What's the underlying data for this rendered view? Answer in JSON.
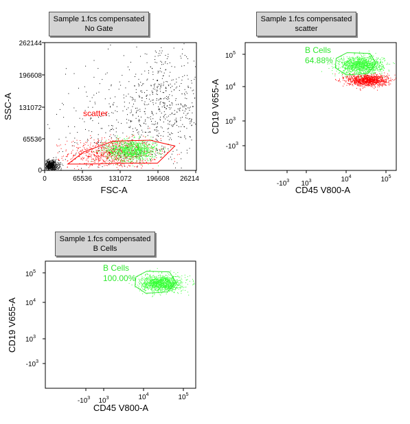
{
  "plots": [
    {
      "id": "p1",
      "header": {
        "line1": "Sample 1.fcs compensated",
        "line2": "No Gate"
      },
      "xlabel": "FSC-A",
      "ylabel": "SSC-A",
      "xticks": [
        "0",
        "65536",
        "131072",
        "196608",
        "26214"
      ],
      "yticks": [
        "262144",
        "196608",
        "131072",
        "65536",
        "0"
      ],
      "gate": {
        "name": "scatter",
        "pct": "",
        "color": "#ff0000"
      }
    },
    {
      "id": "p2",
      "header": {
        "line1": "Sample 1.fcs compensated",
        "line2": "scatter"
      },
      "xlabel": "CD45 V800-A",
      "ylabel": "CD19 V655-A",
      "xticks": [
        "-10",
        "10",
        "10",
        "10"
      ],
      "xtick_exps": [
        "3",
        "3",
        "4",
        "5"
      ],
      "yticks": [
        "10",
        "10",
        "10",
        "-10"
      ],
      "ytick_exps": [
        "5",
        "4",
        "3",
        "3"
      ],
      "gate": {
        "name": "B Cells",
        "pct": "64.88%",
        "color": "#2ee82e"
      }
    },
    {
      "id": "p3",
      "header": {
        "line1": "Sample 1.fcs compensated",
        "line2": "B Cells"
      },
      "xlabel": "CD45 V800-A",
      "ylabel": "CD19 V655-A",
      "xticks": [
        "-10",
        "10",
        "10",
        "10"
      ],
      "xtick_exps": [
        "3",
        "3",
        "4",
        "5"
      ],
      "yticks": [
        "10",
        "10",
        "10",
        "-10"
      ],
      "ytick_exps": [
        "5",
        "4",
        "3",
        "3"
      ],
      "gate": {
        "name": "B Cells",
        "pct": "100.00%",
        "color": "#2ee82e"
      }
    }
  ],
  "chart_data": [
    {
      "type": "scatter",
      "title": "Sample 1.fcs compensated / No Gate",
      "xlabel": "FSC-A",
      "ylabel": "SSC-A",
      "xlim": [
        0,
        262144
      ],
      "ylim": [
        0,
        262144
      ],
      "series": [
        {
          "name": "scatter",
          "color": "#ff0000",
          "clusters": [
            {
              "center": [
                118000,
                36000
              ],
              "spread": [
                38000,
                15000
              ],
              "n": 900
            }
          ]
        },
        {
          "name": "B Cells",
          "color": "#33ff33",
          "clusters": [
            {
              "center": [
                150000,
                42000
              ],
              "spread": [
                22000,
                11000
              ],
              "n": 1100
            }
          ]
        },
        {
          "color": "#000000",
          "clusters": [
            {
              "center": [
                10000,
                10000
              ],
              "spread": [
                7000,
                6000
              ],
              "n": 600
            },
            {
              "center": [
                205000,
                135000
              ],
              "spread": [
                40000,
                55000
              ],
              "n": 500
            },
            {
              "center": [
                130000,
                90000
              ],
              "spread": [
                70000,
                60000
              ],
              "n": 300
            }
          ]
        }
      ],
      "gates": [
        {
          "name": "scatter",
          "color": "#ff0000",
          "vertices": [
            [
              40000,
              13000
            ],
            [
              68000,
              38000
            ],
            [
              118000,
              60000
            ],
            [
              182000,
              62000
            ],
            [
              225000,
              50000
            ],
            [
              195000,
              15000
            ],
            [
              128000,
              15000
            ],
            [
              70000,
              13000
            ]
          ]
        }
      ]
    },
    {
      "type": "scatter",
      "title": "Sample 1.fcs compensated / scatter",
      "xlabel": "CD45 V800-A",
      "ylabel": "CD19 V655-A",
      "xscale": "biexponential",
      "yscale": "biexponential",
      "xlim": [
        -3,
        5.3
      ],
      "ylim": [
        -3.6,
        5.3
      ],
      "series": [
        {
          "name": "B Cells",
          "color": "#33ff33",
          "clusters": [
            {
              "center": [
                3.35,
                3.75
              ],
              "spread": [
                0.6,
                0.3
              ],
              "n": 1300
            }
          ]
        },
        {
          "color": "#ff0000",
          "clusters": [
            {
              "center": [
                3.7,
                2.7
              ],
              "spread": [
                0.55,
                0.2
              ],
              "n": 1100
            }
          ]
        }
      ],
      "gates": [
        {
          "name": "B Cells",
          "label": "64.88%",
          "color": "#2ee82e",
          "vertices": [
            [
              2.0,
              4.2
            ],
            [
              2.6,
              4.6
            ],
            [
              3.85,
              4.55
            ],
            [
              4.2,
              3.85
            ],
            [
              3.75,
              3.15
            ],
            [
              2.55,
              3.05
            ],
            [
              1.95,
              3.55
            ]
          ]
        }
      ]
    },
    {
      "type": "scatter",
      "title": "Sample 1.fcs compensated / B Cells",
      "xlabel": "CD45 V800-A",
      "ylabel": "CD19 V655-A",
      "xscale": "biexponential",
      "yscale": "biexponential",
      "xlim": [
        -3,
        5.3
      ],
      "ylim": [
        -3.6,
        5.3
      ],
      "series": [
        {
          "name": "B Cells",
          "color": "#33ff33",
          "clusters": [
            {
              "center": [
                3.4,
                3.75
              ],
              "spread": [
                0.55,
                0.28
              ],
              "n": 1300
            }
          ]
        }
      ],
      "gates": [
        {
          "name": "B Cells",
          "label": "100.00%",
          "color": "#2ee82e",
          "vertices": [
            [
              2.0,
              4.2
            ],
            [
              2.6,
              4.6
            ],
            [
              3.85,
              4.55
            ],
            [
              4.2,
              3.85
            ],
            [
              3.75,
              3.15
            ],
            [
              2.55,
              3.05
            ],
            [
              1.95,
              3.55
            ]
          ]
        }
      ]
    }
  ]
}
